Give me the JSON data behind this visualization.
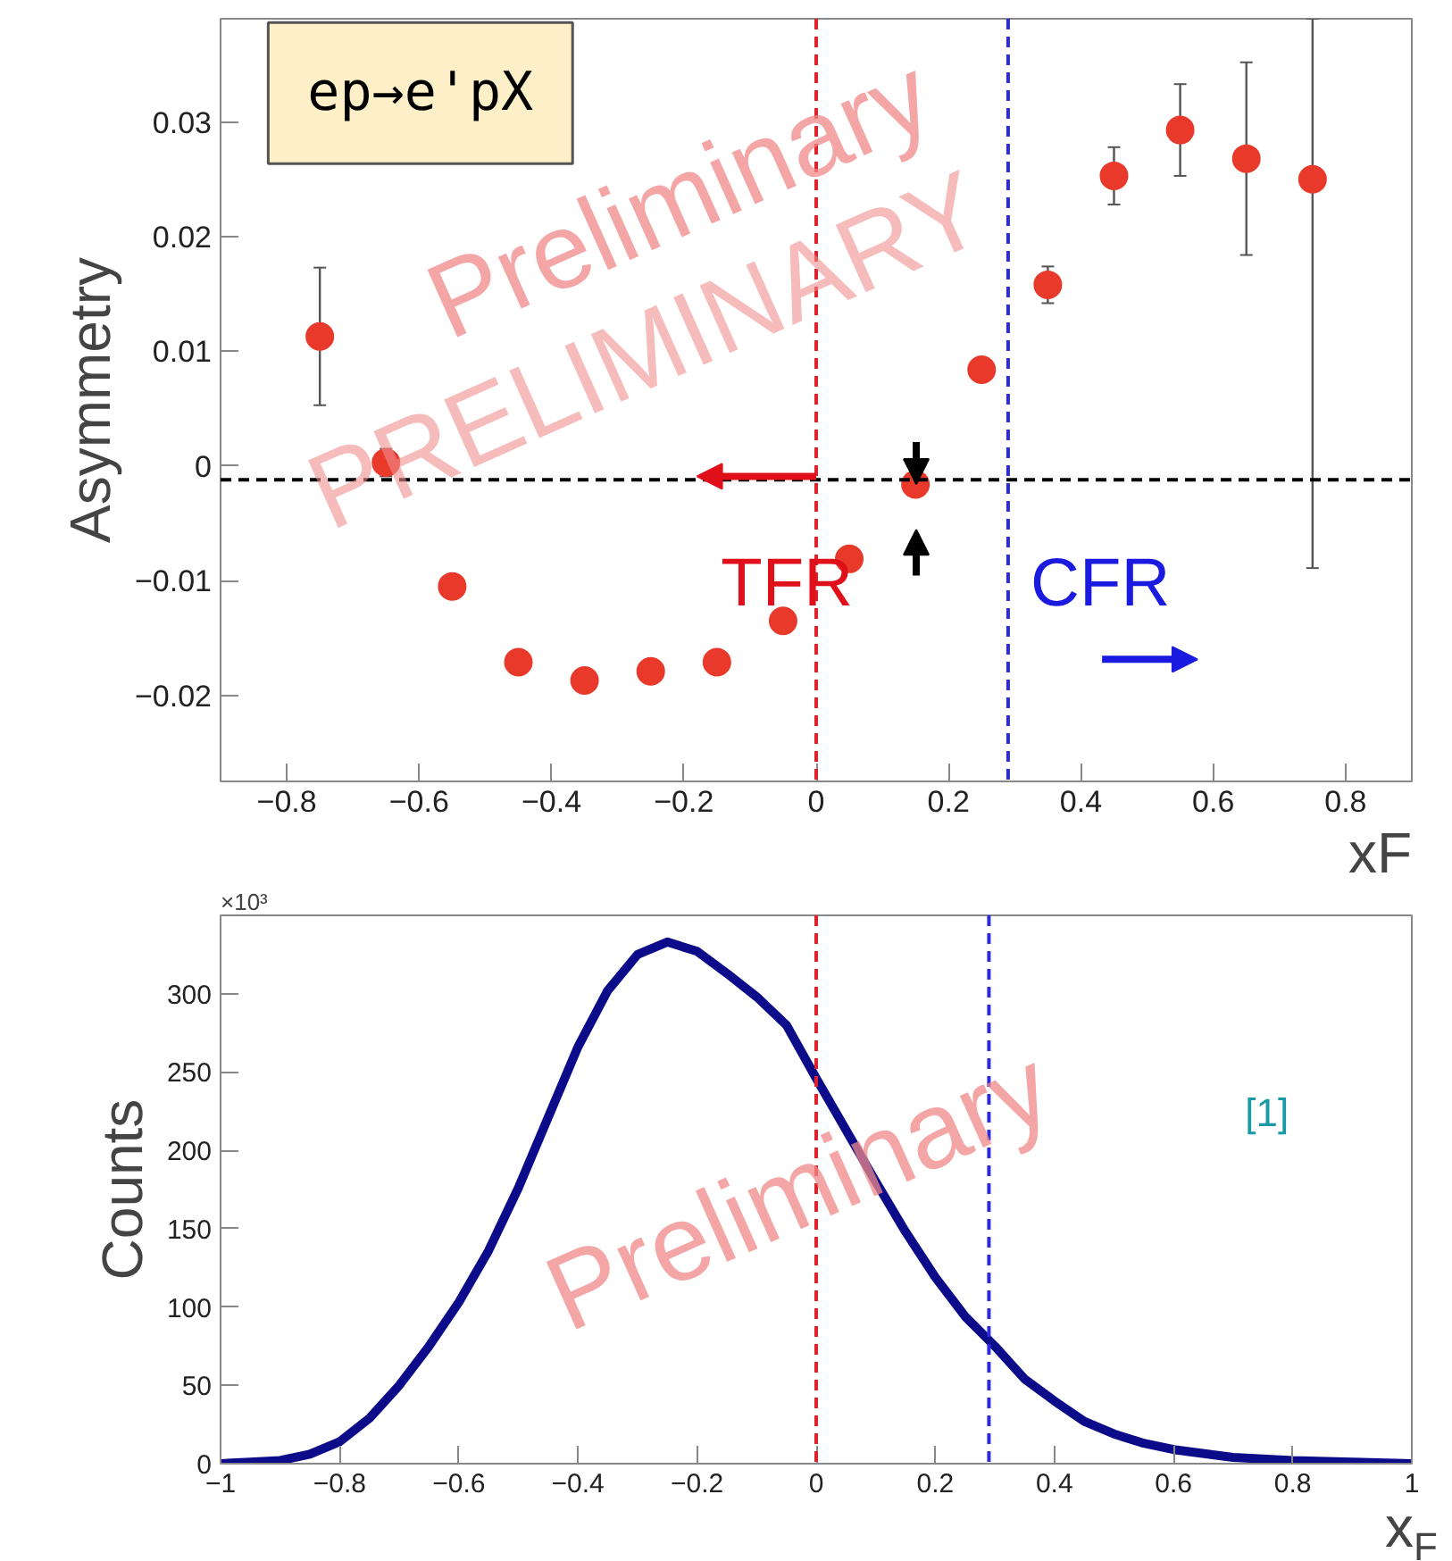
{
  "chart_data": [
    {
      "type": "scatter",
      "xlabel": "xF",
      "ylabel": "Asymmetry",
      "x": [
        -0.75,
        -0.65,
        -0.55,
        -0.45,
        -0.35,
        -0.25,
        -0.15,
        -0.05,
        0.05,
        0.15,
        0.25,
        0.35,
        0.45,
        0.55,
        0.65,
        0.75
      ],
      "series": [
        {
          "color": "#e8392b",
          "values": [
            0.0113,
            0.0003,
            -0.0105,
            -0.0171,
            -0.0187,
            -0.0179,
            -0.0171,
            -0.0135,
            -0.0081,
            -0.0016,
            0.0084,
            0.0158,
            0.0253,
            0.0293,
            0.0268,
            0.025
          ],
          "errors": [
            0.006,
            0.0012,
            null,
            null,
            null,
            null,
            null,
            null,
            null,
            null,
            null,
            0.0016,
            0.0025,
            0.004,
            0.0084,
            [
              -0.0089,
              0.039
            ]
          ]
        }
      ],
      "marker": "circle",
      "xlim": [
        -0.9,
        0.9
      ],
      "ylim": [
        -0.0275,
        0.039
      ],
      "xticks": [
        {
          "value": -0.8,
          "label": "−0.8"
        },
        {
          "value": -0.6,
          "label": "−0.6"
        },
        {
          "value": -0.4,
          "label": "−0.4"
        },
        {
          "value": -0.2,
          "label": "−0.2"
        },
        0,
        0.2,
        0.4,
        0.6,
        0.8
      ],
      "yticks": [
        {
          "value": -0.02,
          "label": "−0.02"
        },
        {
          "value": -0.01,
          "label": "−0.01"
        },
        0,
        0.01,
        0.02,
        0.03
      ],
      "ref_lines": [
        {
          "axis": "y",
          "value": -0.0012,
          "color": "#000000",
          "line_style": "dashed"
        },
        {
          "axis": "x",
          "value": 0,
          "color": "#e0202a",
          "line_style": "dashed"
        },
        {
          "axis": "x",
          "value": 0.29,
          "color": "#2a2ae0",
          "line_style": "dashed"
        }
      ],
      "annotations": [
        "ep→e'pX",
        "TFR",
        "CFR",
        "Preliminary",
        "PRELIMINARY"
      ],
      "grid": false
    },
    {
      "type": "line",
      "xlabel": "x$_{F}$",
      "ylabel": "Counts",
      "x": [
        -1,
        -0.95,
        -0.9,
        -0.85,
        -0.8,
        -0.75,
        -0.7,
        -0.65,
        -0.6,
        -0.55,
        -0.5,
        -0.45,
        -0.4,
        -0.35,
        -0.3,
        -0.25,
        -0.2,
        -0.15,
        -0.1,
        -0.05,
        0,
        0.05,
        0.1,
        0.15,
        0.2,
        0.25,
        0.3,
        0.35,
        0.4,
        0.45,
        0.5,
        0.55,
        0.6,
        0.7,
        0.8,
        0.9,
        1
      ],
      "series": [
        {
          "color": "#0c0c8a",
          "values": [
            0,
            1,
            2,
            6,
            14,
            29,
            50,
            75,
            103,
            136,
            176,
            221,
            266,
            302,
            325,
            333,
            327,
            313,
            298,
            280,
            246,
            213,
            180,
            148,
            119,
            94,
            75,
            54,
            40,
            27,
            19,
            13,
            9,
            4,
            2,
            1,
            0
          ]
        }
      ],
      "marker": "none",
      "line_style": "solid",
      "xlim": [
        -1,
        1
      ],
      "ylim": [
        0,
        350
      ],
      "xticks": [
        {
          "value": -1,
          "label": "−1"
        },
        {
          "value": -0.8,
          "label": "−0.8"
        },
        {
          "value": -0.6,
          "label": "−0.6"
        },
        {
          "value": -0.4,
          "label": "−0.4"
        },
        {
          "value": -0.2,
          "label": "−0.2"
        },
        0,
        0.2,
        0.4,
        0.6,
        0.8,
        1
      ],
      "yticks": [
        0,
        50,
        100,
        150,
        200,
        250,
        300
      ],
      "ref_lines": [
        {
          "axis": "x",
          "value": 0,
          "color": "#e0202a",
          "line_style": "dashed"
        },
        {
          "axis": "x",
          "value": 0.29,
          "color": "#2a2ae0",
          "line_style": "dashed"
        }
      ],
      "annotations": [
        "×10³",
        "Preliminary",
        "[1]"
      ],
      "grid": false
    }
  ]
}
